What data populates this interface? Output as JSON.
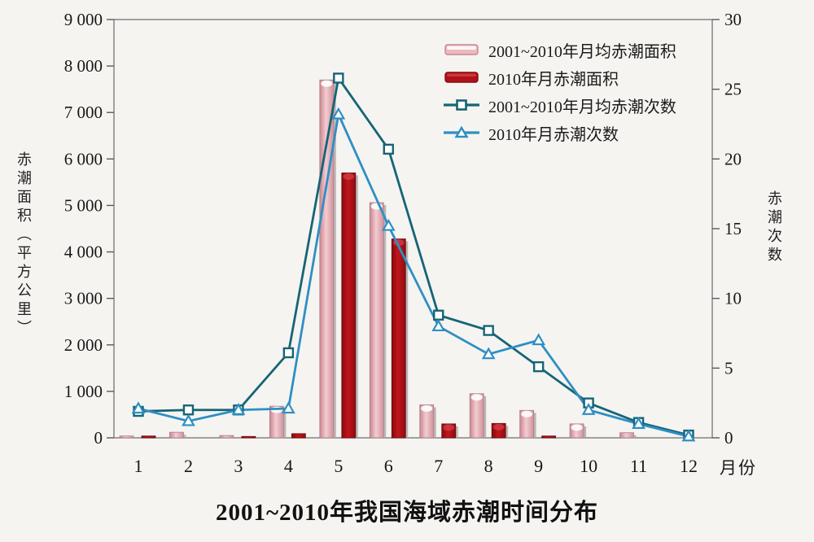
{
  "chart_data": {
    "type": "combo-bar-line",
    "title": "2001~2010年我国海域赤潮时间分布",
    "xlabel": "月份",
    "x": [
      1,
      2,
      3,
      4,
      5,
      6,
      7,
      8,
      9,
      10,
      11,
      12
    ],
    "left_axis": {
      "label": "赤潮面积（平方公里）",
      "min": 0,
      "max": 9000,
      "tick_labels": [
        "0",
        "1 000",
        "2 000",
        "3 000",
        "4 000",
        "5 000",
        "6 000",
        "7 000",
        "8 000",
        "9 000"
      ]
    },
    "right_axis": {
      "label": "赤潮次数",
      "min": 0,
      "max": 30,
      "tick_labels": [
        "0",
        "5",
        "10",
        "15",
        "20",
        "25",
        "30"
      ]
    },
    "grid": false,
    "legend_position": "top-right-inside",
    "series": [
      {
        "name": "2001~2010年月均赤潮面积",
        "type": "bar",
        "axis": "left",
        "color": "#edb9c1",
        "color_edge": "#c9858f",
        "values": [
          40,
          120,
          50,
          680,
          7700,
          5060,
          710,
          950,
          590,
          300,
          110,
          0
        ]
      },
      {
        "name": "2010年月赤潮面积",
        "type": "bar",
        "axis": "left",
        "color": "#b01218",
        "color_edge": "#830b10",
        "values": [
          40,
          0,
          30,
          90,
          5700,
          4280,
          300,
          310,
          40,
          0,
          0,
          0
        ]
      },
      {
        "name": "2001~2010年月均赤潮次数",
        "type": "line",
        "marker": "square",
        "axis": "right",
        "color": "#166476",
        "values": [
          1.9,
          2.0,
          2.0,
          6.1,
          25.8,
          20.7,
          8.8,
          7.7,
          5.1,
          2.5,
          1.1,
          0.2
        ]
      },
      {
        "name": "2010年月赤潮次数",
        "type": "line",
        "marker": "triangle",
        "axis": "right",
        "color": "#2e8fc3",
        "values": [
          2.1,
          1.2,
          2.0,
          2.1,
          23.2,
          15.2,
          8.0,
          6.0,
          7.0,
          2.0,
          1.0,
          0.1
        ]
      }
    ]
  }
}
